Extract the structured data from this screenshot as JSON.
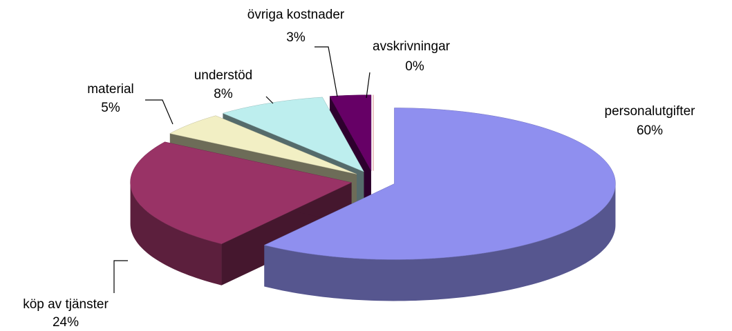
{
  "chart_data": {
    "type": "pie3d",
    "categories": [
      "personalutgifter",
      "köp av tjänster",
      "material",
      "understöd",
      "övriga kostnader",
      "avskrivningar"
    ],
    "values": [
      60,
      24,
      5,
      8,
      3,
      0
    ],
    "value_labels": [
      "60%",
      "24%",
      "5%",
      "8%",
      "3%",
      "0%"
    ],
    "colors": [
      "#8f8fef",
      "#993366",
      "#f2efc4",
      "#bdeeee",
      "#660066",
      "#ff8080"
    ]
  }
}
